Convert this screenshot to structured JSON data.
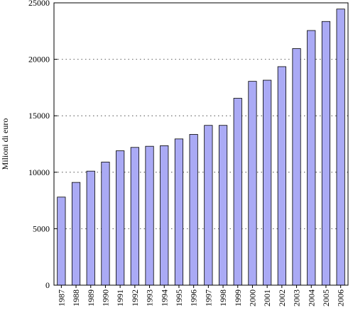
{
  "chart_data": {
    "type": "bar",
    "categories": [
      "1987",
      "1988",
      "1989",
      "1990",
      "1991",
      "1992",
      "1993",
      "1994",
      "1995",
      "1996",
      "1997",
      "1998",
      "1999",
      "2000",
      "2001",
      "2002",
      "2003",
      "2004",
      "2005",
      "2006"
    ],
    "values": [
      7800,
      9100,
      10100,
      10900,
      11900,
      12200,
      12300,
      12350,
      12950,
      13350,
      14150,
      14150,
      16550,
      18050,
      18150,
      19350,
      20950,
      22550,
      23350,
      24450
    ],
    "title": "",
    "xlabel": "",
    "ylabel": "Milioni di euro",
    "ylim": [
      0,
      25000
    ],
    "yticks": [
      0,
      5000,
      10000,
      15000,
      20000,
      25000
    ],
    "grid": "horizontal dotted",
    "bar_color": "#aaaaf5"
  }
}
